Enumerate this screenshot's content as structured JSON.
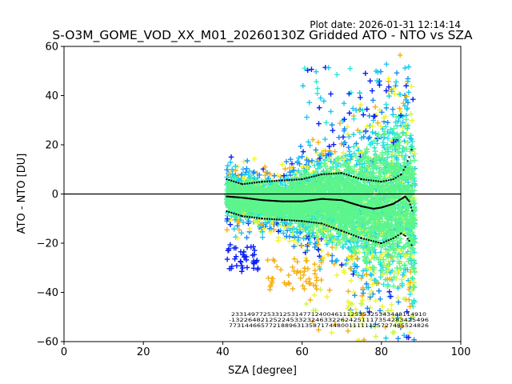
{
  "chart_data": {
    "type": "scatter",
    "title": "S-O3M_GOME_VOD_XX_M01_20260130Z Gridded ATO - NTO vs SZA",
    "plot_date": "Plot date: 2026-01-31 12:14:14",
    "xlabel": "SZA [degree]",
    "ylabel": "ATO - NTO [DU]",
    "xlim": [
      0,
      100
    ],
    "ylim": [
      -60,
      60
    ],
    "xticks": [
      0,
      20,
      40,
      60,
      80,
      100
    ],
    "yticks": [
      -60,
      -40,
      -20,
      0,
      20,
      40,
      60
    ],
    "xtick_labels": [
      "0",
      "20",
      "40",
      "60",
      "80",
      "100"
    ],
    "ytick_labels": [
      "−60",
      "−40",
      "−20",
      "0",
      "20",
      "40",
      "60"
    ],
    "marker": "+",
    "reference_line_y": 0,
    "colors": {
      "main": "#5cf58c",
      "cyan": "#27e8d5",
      "lightblue": "#19c8f0",
      "blue": "#0a1ef5",
      "azure": "#1a8cf5",
      "yellow": "#f0f52a",
      "lime": "#c8f550",
      "orange": "#f5b010",
      "black": "#000000"
    },
    "sza_range": [
      41,
      88.5
    ],
    "median_curve": {
      "sza": [
        41,
        45,
        50,
        55,
        60,
        65,
        70,
        72,
        75,
        78,
        80,
        83,
        85,
        86,
        87,
        88
      ],
      "values": [
        -1,
        -1.5,
        -2.5,
        -3,
        -3,
        -2,
        -2.5,
        -3.5,
        -5,
        -6,
        -5.5,
        -4,
        -2,
        -1,
        -3,
        -8
      ]
    },
    "upper_curve": {
      "sza": [
        41,
        45,
        50,
        55,
        60,
        65,
        70,
        75,
        80,
        83,
        85,
        86,
        87,
        88
      ],
      "values": [
        6,
        4,
        5,
        5.5,
        6,
        8,
        8.5,
        6,
        5,
        6,
        8,
        11,
        15,
        20
      ]
    },
    "lower_curve": {
      "sza": [
        41,
        45,
        50,
        55,
        60,
        65,
        70,
        75,
        80,
        83,
        85,
        86,
        87,
        88
      ],
      "values": [
        -7,
        -9,
        -10,
        -10.5,
        -11,
        -12,
        -15,
        -18,
        -20,
        -18,
        -16,
        -17,
        -19,
        -22
      ]
    },
    "annotation_rows": {
      "row1": "2331497725331253147712400461112535325343448114910",
      "row2": "-13226482125224533232463322624251117354283425496",
      "row3": "77314466577218896313587174480011111125727485524826"
    }
  }
}
